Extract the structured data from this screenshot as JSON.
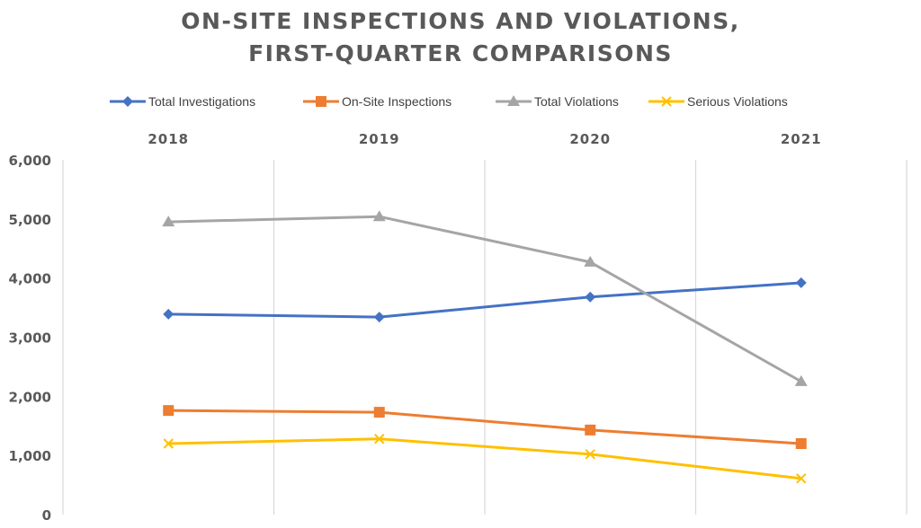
{
  "chart_data": {
    "type": "line",
    "title": [
      "ON-SITE INSPECTIONS AND VIOLATIONS,",
      "FIRST-QUARTER COMPARISONS"
    ],
    "categories": [
      "2018",
      "2019",
      "2020",
      "2021"
    ],
    "category_axis_position": "top",
    "ylim": [
      0,
      6000
    ],
    "yticks": [
      "0",
      "1,000",
      "2,000",
      "3,000",
      "4,000",
      "5,000",
      "6,000"
    ],
    "grid": {
      "vertical": true,
      "horizontal": false
    },
    "legend_position": "top",
    "series": [
      {
        "name": "Total Investigations",
        "color": "#4472C4",
        "marker": "diamond",
        "values": [
          3390,
          3340,
          3680,
          3920
        ]
      },
      {
        "name": "On-Site Inspections",
        "color": "#ED7D31",
        "marker": "square",
        "values": [
          1760,
          1730,
          1430,
          1200
        ]
      },
      {
        "name": "Total Violations",
        "color": "#A5A5A5",
        "marker": "triangle",
        "values": [
          4950,
          5040,
          4270,
          2250
        ]
      },
      {
        "name": "Serious Violations",
        "color": "#FFC000",
        "marker": "x",
        "values": [
          1200,
          1280,
          1020,
          610
        ]
      }
    ]
  }
}
